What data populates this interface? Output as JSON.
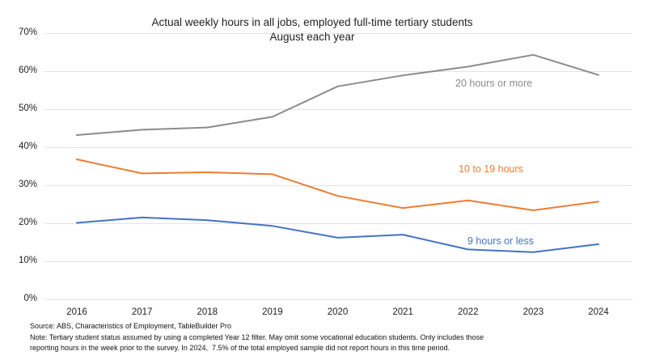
{
  "chart_data": {
    "type": "line",
    "title": "Actual weekly hours in all jobs, employed full-time tertiary students",
    "subtitle": "August each year",
    "categories": [
      "2016",
      "2017",
      "2018",
      "2019",
      "2020",
      "2021",
      "2022",
      "2023",
      "2024"
    ],
    "series": [
      {
        "name": "20 hours or more",
        "color": "#8b8b8b",
        "values": [
          43.2,
          44.6,
          45.2,
          48.0,
          56.0,
          58.9,
          61.2,
          64.3,
          59.0
        ],
        "label": {
          "x": 563,
          "y": 96
        }
      },
      {
        "name": "10 to 19 hours",
        "color": "#ED7D31",
        "values": [
          36.8,
          33.1,
          33.4,
          32.9,
          27.2,
          24.0,
          26.0,
          23.4,
          25.7
        ],
        "label": {
          "x": 567,
          "y": 202
        }
      },
      {
        "name": "9 hours or less",
        "color": "#4472C4",
        "values": [
          20.1,
          21.5,
          20.8,
          19.3,
          16.2,
          17.0,
          13.1,
          12.4,
          14.5
        ],
        "label": {
          "x": 578,
          "y": 291
        }
      }
    ],
    "ylim": [
      0,
      70
    ],
    "yticks": [
      {
        "value": 0,
        "label": "0%"
      },
      {
        "value": 10,
        "label": "10%"
      },
      {
        "value": 20,
        "label": "20%"
      },
      {
        "value": 30,
        "label": "30%"
      },
      {
        "value": 40,
        "label": "40%"
      },
      {
        "value": 50,
        "label": "50%"
      },
      {
        "value": 60,
        "label": "60%"
      },
      {
        "value": 70,
        "label": "70%"
      }
    ],
    "grid": true,
    "gridline_color": "#e3e3e3",
    "legend_position": "inline-labels"
  },
  "footnotes": {
    "lines": [
      "Source: ABS, Characteristics of Employment, TableBuilder Pro",
      "Note: Tertiary student status assumed by using a completed Year 12 filter. May omit some vocational education students. Only includes those",
      "reporting hours in the week prior to the survey. In 2024,  7.5% of the total employed sample did not report hours in this time period."
    ]
  }
}
